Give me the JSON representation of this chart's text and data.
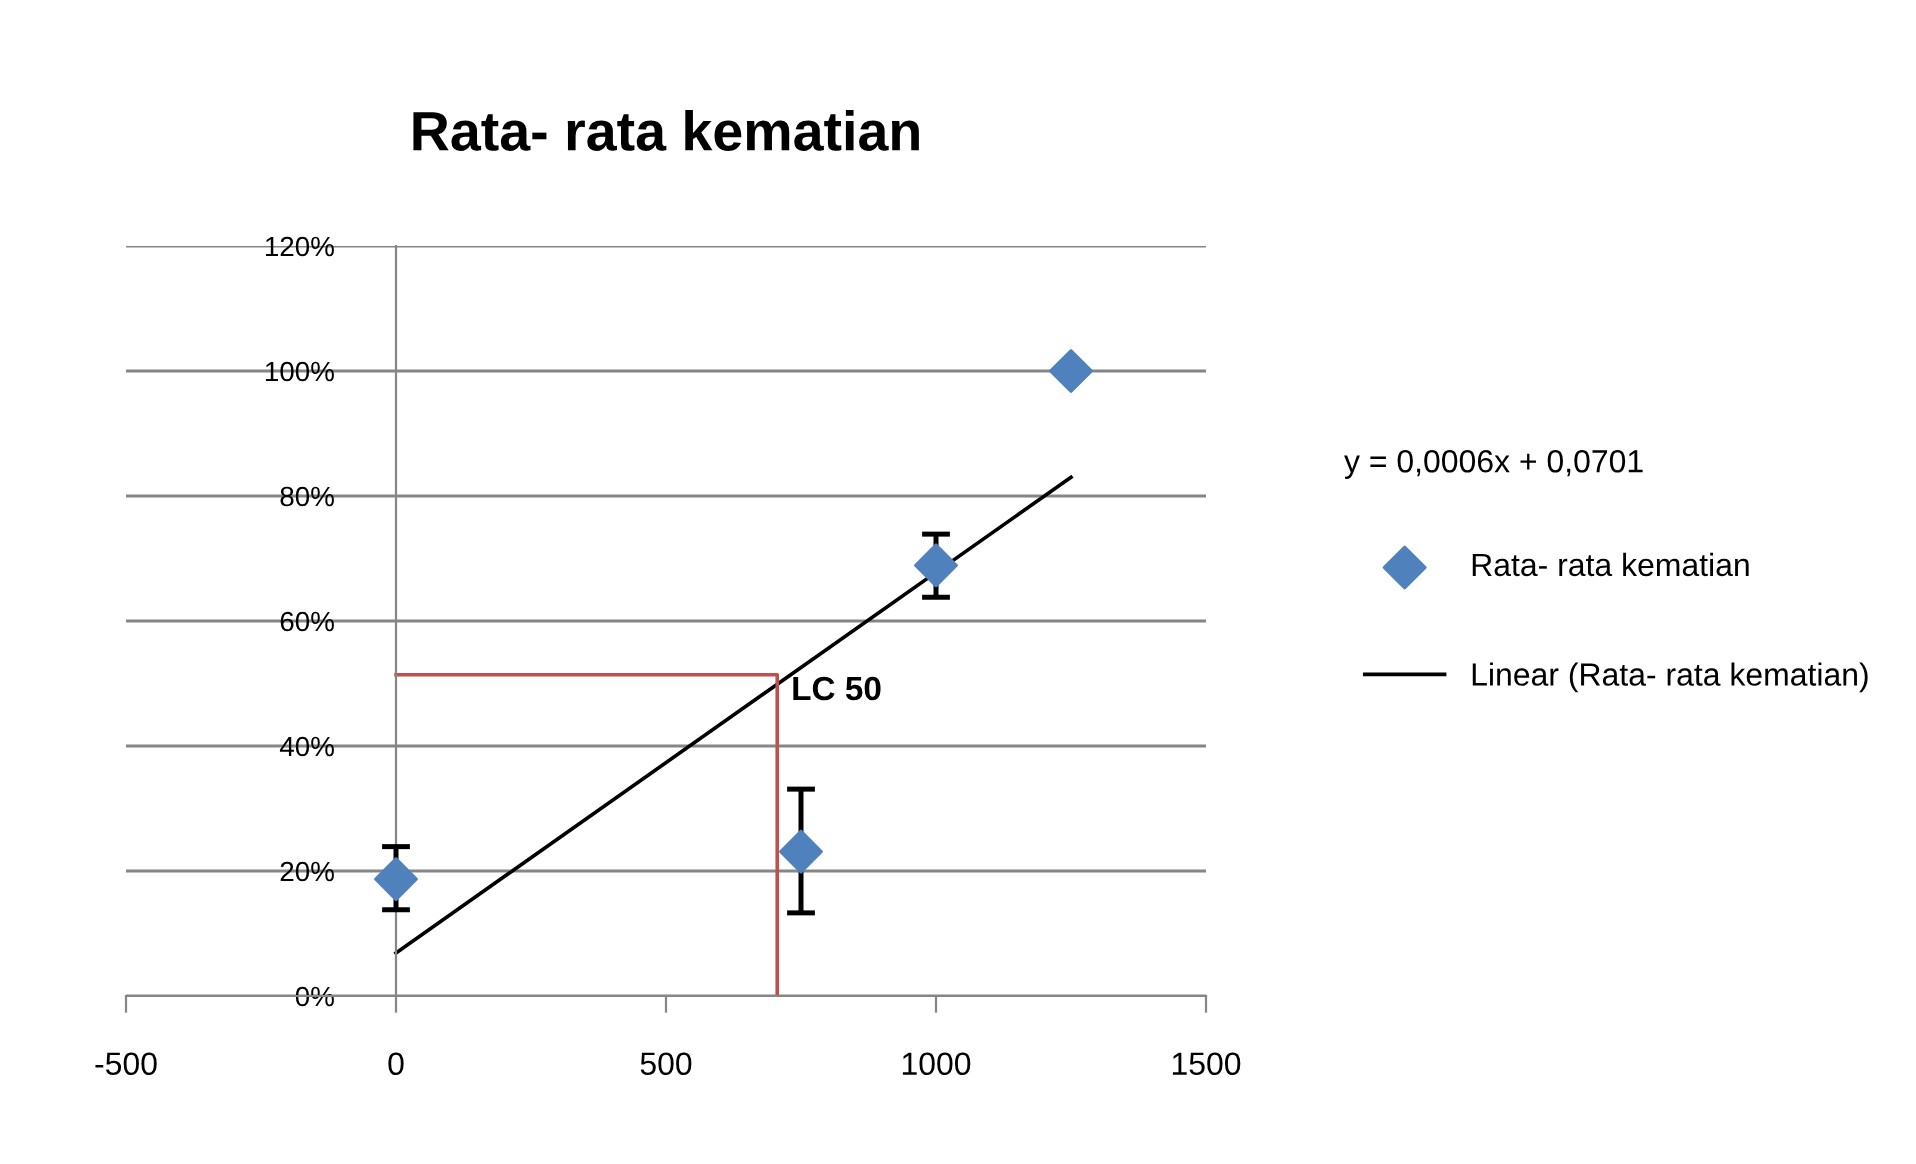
{
  "chart_data": {
    "type": "scatter",
    "title": "Rata- rata kematian",
    "series": [
      {
        "name": "Rata- rata kematian",
        "color": "#4f81bd",
        "marker": "diamond",
        "x": [
          0,
          750,
          1000,
          1250
        ],
        "values": [
          18.7,
          23.1,
          68.9,
          100
        ],
        "errors": [
          [
            13.8,
            23.9
          ],
          [
            13.3,
            33.1
          ],
          [
            63.8,
            73.9
          ],
          null
        ]
      },
      {
        "type": "line",
        "name": "Linear (Rata- rata kematian)",
        "color": "#000000",
        "marker": "none",
        "line_style": "solid",
        "x": [
          0,
          1250
        ],
        "values": [
          6.9,
          83.0
        ]
      },
      {
        "type": "line",
        "color": "#c0504d",
        "marker": "none",
        "line_style": "solid",
        "x": [
          0,
          706,
          706
        ],
        "values": [
          51.4,
          51.4,
          0
        ]
      }
    ],
    "annotations": [
      {
        "text": "LC 50",
        "x": 706,
        "y": 51.4
      },
      "y = 0,0006x + 0,0701"
    ],
    "xlim": [
      -500,
      1500
    ],
    "xticks": [
      -500,
      0,
      500,
      1000,
      1500
    ],
    "ylim": [
      0,
      120
    ],
    "yticks": [
      {
        "value": 0,
        "label": "0%"
      },
      {
        "value": 20,
        "label": "20%"
      },
      {
        "value": 40,
        "label": "40%"
      },
      {
        "value": 60,
        "label": "60%"
      },
      {
        "value": 80,
        "label": "80%"
      },
      {
        "value": 100,
        "label": "100%"
      },
      {
        "value": 120,
        "label": "120%"
      }
    ],
    "grid": "y",
    "legend": "right"
  }
}
